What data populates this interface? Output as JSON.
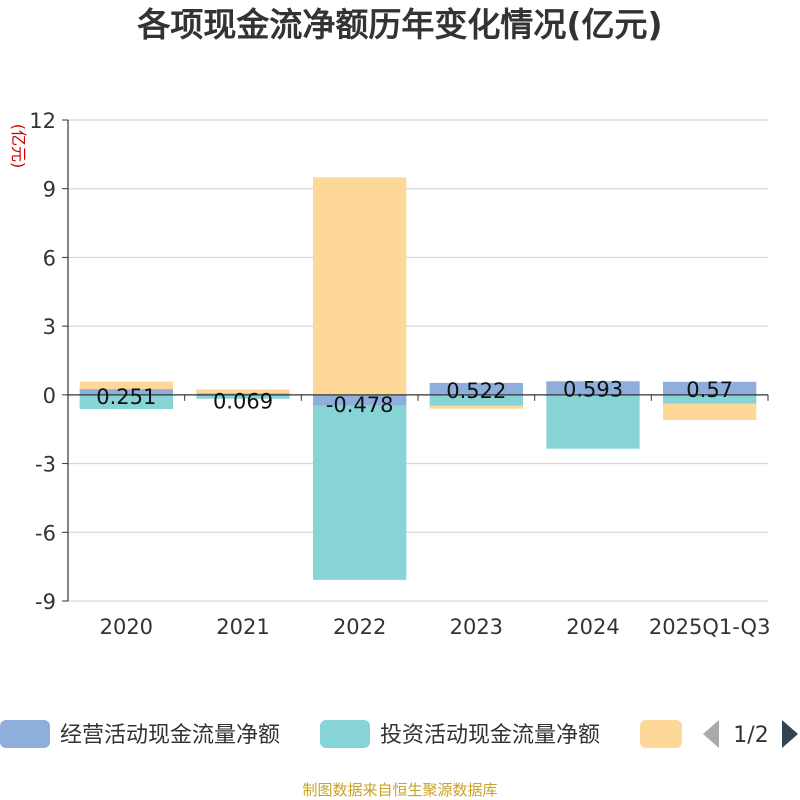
{
  "chart_data": {
    "type": "bar",
    "stacked": true,
    "title": "各项现金流净额历年变化情况(亿元)",
    "ylabel": "(亿元)",
    "xlabel": "",
    "ylim": [
      -9,
      12
    ],
    "yticks": [
      12,
      9,
      6,
      3,
      0,
      -3,
      -6,
      -9
    ],
    "categories": [
      "2020",
      "2021",
      "2022",
      "2023",
      "2024",
      "2025Q1-Q3"
    ],
    "series": [
      {
        "name": "经营活动现金流量净额",
        "color": "#8eaedc",
        "values": [
          0.251,
          0.069,
          -0.478,
          0.522,
          0.593,
          0.57
        ],
        "labels": [
          "0.251",
          "0.069",
          "-0.478",
          "0.522",
          "0.593",
          "0.57"
        ]
      },
      {
        "name": "投资活动现金流量净额",
        "color": "#86d4d6",
        "values": [
          -0.62,
          -0.17,
          -7.6,
          -0.48,
          -2.35,
          -0.38
        ]
      },
      {
        "name": "",
        "color": "#fed898",
        "values": [
          0.33,
          0.17,
          9.5,
          -0.12,
          0.0,
          -0.72
        ]
      }
    ],
    "legend": {
      "position": "bottom",
      "page": "1/2"
    },
    "source": "制图数据来自恒生聚源数据库"
  }
}
